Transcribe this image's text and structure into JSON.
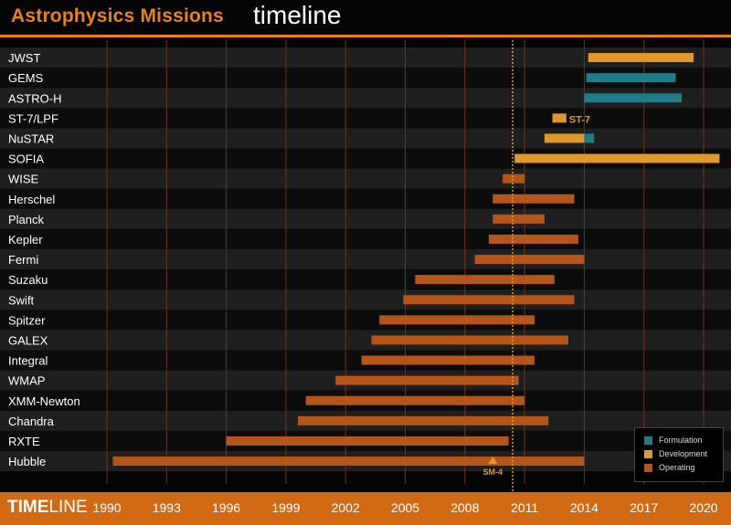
{
  "title": {
    "main": "Astrophysics Missions",
    "sub": "timeline"
  },
  "brand": {
    "bold": "TIME",
    "rest": "LINE"
  },
  "colors": {
    "accent": "#e8821e",
    "formulation": "#1f7d8a",
    "development": "#e0982a",
    "operating": "#b4561c",
    "bottom_bar": "#d26a14"
  },
  "legend": {
    "items": [
      {
        "label": "Formulation",
        "color": "#1f7d8a"
      },
      {
        "label": "Development",
        "color": "#e0982a"
      },
      {
        "label": "Operating",
        "color": "#b4561c"
      }
    ]
  },
  "chart_data": {
    "type": "bar",
    "orientation": "horizontal",
    "x_axis": {
      "min": 1989.7,
      "max": 2020.8,
      "ticks": [
        1990,
        1993,
        1996,
        1999,
        2002,
        2005,
        2008,
        2011,
        2014,
        2017,
        2020
      ]
    },
    "current_date_marker": 2010.4,
    "categories": [
      "JWST",
      "GEMS",
      "ASTRO-H",
      "ST-7/LPF",
      "NuSTAR",
      "SOFIA",
      "WISE",
      "Herschel",
      "Planck",
      "Kepler",
      "Fermi",
      "Suzaku",
      "Swift",
      "Spitzer",
      "GALEX",
      "Integral",
      "WMAP",
      "XMM-Newton",
      "Chandra",
      "RXTE",
      "Hubble"
    ],
    "missions": [
      {
        "name": "JWST",
        "segments": [
          {
            "phase": "development",
            "start": 2014.2,
            "end": 2019.5
          }
        ]
      },
      {
        "name": "GEMS",
        "segments": [
          {
            "phase": "formulation",
            "start": 2014.1,
            "end": 2018.6
          }
        ]
      },
      {
        "name": "ASTRO-H",
        "segments": [
          {
            "phase": "formulation",
            "start": 2014.0,
            "end": 2018.9
          }
        ]
      },
      {
        "name": "ST-7/LPF",
        "segments": [
          {
            "phase": "development",
            "start": 2012.4,
            "end": 2013.1
          }
        ],
        "label": "ST-7"
      },
      {
        "name": "NuSTAR",
        "segments": [
          {
            "phase": "development",
            "start": 2012.0,
            "end": 2014.0
          },
          {
            "phase": "formulation",
            "start": 2014.0,
            "end": 2014.5
          }
        ]
      },
      {
        "name": "SOFIA",
        "segments": [
          {
            "phase": "development",
            "start": 2010.5,
            "end": 2020.8
          }
        ]
      },
      {
        "name": "WISE",
        "segments": [
          {
            "phase": "operating",
            "start": 2009.9,
            "end": 2011.0
          }
        ]
      },
      {
        "name": "Herschel",
        "segments": [
          {
            "phase": "operating",
            "start": 2009.4,
            "end": 2013.5
          }
        ]
      },
      {
        "name": "Planck",
        "segments": [
          {
            "phase": "operating",
            "start": 2009.4,
            "end": 2012.0
          }
        ]
      },
      {
        "name": "Kepler",
        "segments": [
          {
            "phase": "operating",
            "start": 2009.2,
            "end": 2013.7
          }
        ]
      },
      {
        "name": "Fermi",
        "segments": [
          {
            "phase": "operating",
            "start": 2008.5,
            "end": 2014.0
          }
        ]
      },
      {
        "name": "Suzaku",
        "segments": [
          {
            "phase": "operating",
            "start": 2005.5,
            "end": 2012.5
          }
        ]
      },
      {
        "name": "Swift",
        "segments": [
          {
            "phase": "operating",
            "start": 2004.9,
            "end": 2013.5
          }
        ]
      },
      {
        "name": "Spitzer",
        "segments": [
          {
            "phase": "operating",
            "start": 2003.7,
            "end": 2011.5
          }
        ]
      },
      {
        "name": "GALEX",
        "segments": [
          {
            "phase": "operating",
            "start": 2003.3,
            "end": 2013.2
          }
        ]
      },
      {
        "name": "Integral",
        "segments": [
          {
            "phase": "operating",
            "start": 2002.8,
            "end": 2011.5
          }
        ]
      },
      {
        "name": "WMAP",
        "segments": [
          {
            "phase": "operating",
            "start": 2001.5,
            "end": 2010.7
          }
        ]
      },
      {
        "name": "XMM-Newton",
        "segments": [
          {
            "phase": "operating",
            "start": 2000.0,
            "end": 2011.0
          }
        ]
      },
      {
        "name": "Chandra",
        "segments": [
          {
            "phase": "operating",
            "start": 1999.6,
            "end": 2012.2
          }
        ]
      },
      {
        "name": "RXTE",
        "segments": [
          {
            "phase": "operating",
            "start": 1996.0,
            "end": 2010.2
          }
        ]
      },
      {
        "name": "Hubble",
        "segments": [
          {
            "phase": "operating",
            "start": 1990.3,
            "end": 2014.0
          }
        ]
      }
    ],
    "annotations": [
      {
        "text": "SM-4",
        "mission": "Hubble",
        "x": 2009.4
      }
    ]
  }
}
